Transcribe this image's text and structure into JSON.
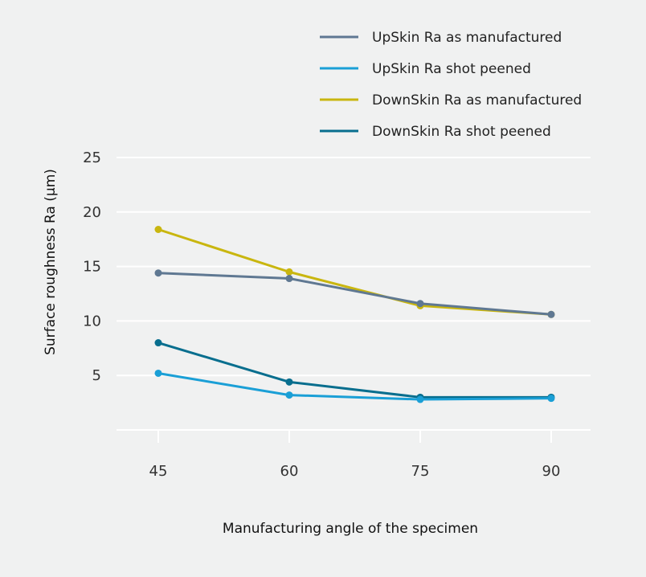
{
  "chart_data": {
    "type": "line",
    "title": "",
    "xlabel": "Manufacturing angle of the specimen",
    "ylabel": "Surface roughness Ra (µm)",
    "x": [
      45,
      60,
      75,
      90
    ],
    "x_tick_labels": [
      "45",
      "60",
      "75",
      "90"
    ],
    "y_ticks": [
      5,
      10,
      15,
      20,
      25
    ],
    "y_tick_labels": [
      "5",
      "10",
      "15",
      "20",
      "25"
    ],
    "ylim": [
      0,
      25
    ],
    "grid": "horizontal",
    "legend_position": "top-right",
    "series": [
      {
        "name": "UpSkin Ra as manufactured",
        "color": "#5f7892",
        "values": [
          14.4,
          13.9,
          11.6,
          10.6
        ]
      },
      {
        "name": "UpSkin Ra shot peened",
        "color": "#1a9fd6",
        "values": [
          5.2,
          3.2,
          2.8,
          2.9
        ]
      },
      {
        "name": "DownSkin Ra as manufactured",
        "color": "#c9b60f",
        "values": [
          18.4,
          14.5,
          11.4,
          10.6
        ]
      },
      {
        "name": "DownSkin Ra shot peened",
        "color": "#086e8e",
        "values": [
          8.0,
          4.4,
          3.0,
          3.0
        ]
      }
    ]
  }
}
